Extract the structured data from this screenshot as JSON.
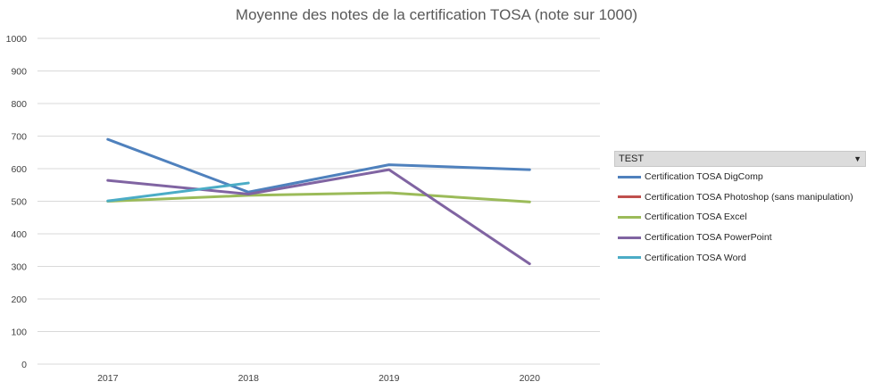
{
  "chart_data": {
    "type": "line",
    "title": "Moyenne des notes de la certification TOSA (note sur 1000)",
    "categories": [
      "2017",
      "2018",
      "2019",
      "2020"
    ],
    "ylim": [
      0,
      1000
    ],
    "yticks": [
      "0",
      "100",
      "200",
      "300",
      "400",
      "500",
      "600",
      "700",
      "800",
      "900",
      "1000"
    ],
    "grid": true,
    "legend_position": "right",
    "legend_title": "TEST",
    "series": [
      {
        "name": "Certification TOSA DigComp",
        "color": "#4f81bd",
        "values": [
          690,
          528,
          612,
          597
        ]
      },
      {
        "name": "Certification TOSA Photoshop (sans manipulation)",
        "color": "#c0504d",
        "values": [
          null,
          null,
          null,
          null
        ]
      },
      {
        "name": "Certification TOSA Excel",
        "color": "#9bbb59",
        "values": [
          500,
          518,
          526,
          498
        ]
      },
      {
        "name": "Certification TOSA PowerPoint",
        "color": "#8064a2",
        "values": [
          564,
          522,
          597,
          308
        ]
      },
      {
        "name": "Certification TOSA Word",
        "color": "#4bacc6",
        "values": [
          501,
          556,
          null,
          null
        ]
      }
    ]
  }
}
